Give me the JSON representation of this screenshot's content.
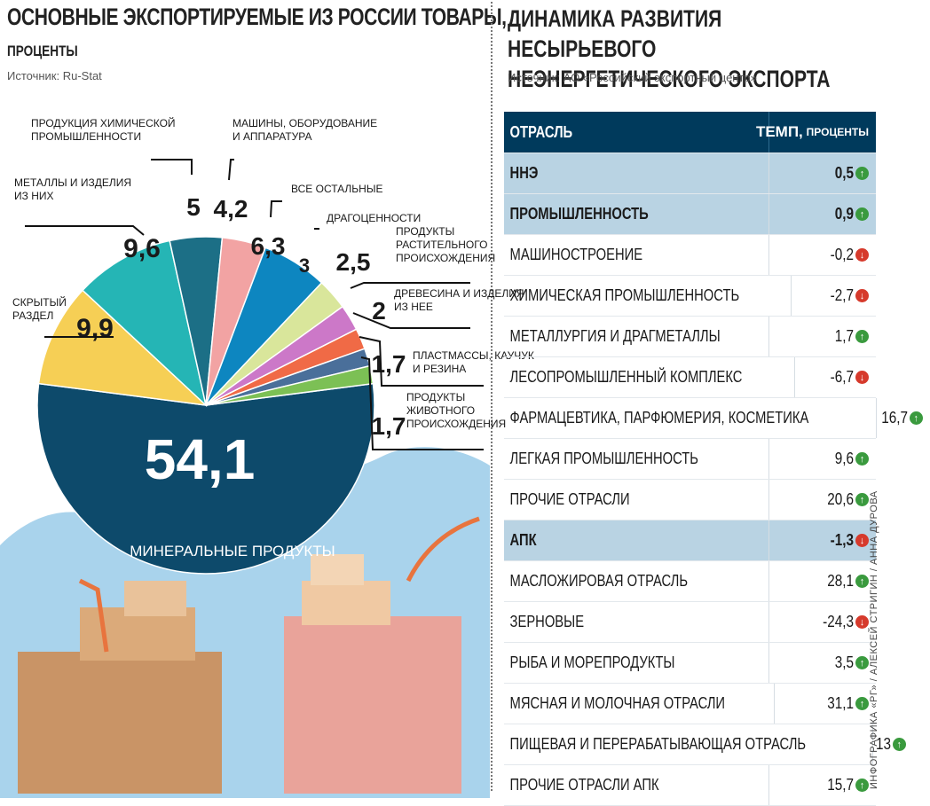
{
  "left": {
    "title": "ОСНОВНЫЕ ЭКСПОРТИРУЕМЫЕ ИЗ РОССИИ ТОВАРЫ,",
    "subtitle": "ПРОЦЕНТЫ",
    "source": "Источник: Ru-Stat"
  },
  "right": {
    "title_line1": "ДИНАМИКА РАЗВИТИЯ НЕСЫРЬЕВОГО",
    "title_line2": "НЕЭНЕРГЕТИЧЕСКОГО ЭКСПОРТА",
    "source": "Источник: АО «Российский экспортный центр»"
  },
  "credit": "ИНФОГРАФИКА «РГ» / АЛЕКСЕЙ СТРИГИН / АННА ДУРОВА",
  "chart_data": [
    {
      "type": "pie",
      "title": "ОСНОВНЫЕ ЭКСПОРТИРУЕМЫЕ ИЗ РОССИИ ТОВАРЫ,",
      "subtitle": "ПРОЦЕНТЫ",
      "slices": [
        {
          "label": "МИНЕРАЛЬНЫЕ ПРОДУКТЫ",
          "value": 54.1,
          "value_text": "54,1",
          "color": "#0d4a6b"
        },
        {
          "label": "СКРЫТЫЙ РАЗДЕЛ",
          "value": 9.9,
          "value_text": "9,9",
          "color": "#f6cf55"
        },
        {
          "label": "МЕТАЛЛЫ И ИЗДЕЛИЯ ИЗ НИХ",
          "value": 9.6,
          "value_text": "9,6",
          "color": "#25b5b5"
        },
        {
          "label": "ПРОДУКЦИЯ ХИМИЧЕСКОЙ ПРОМЫШЛЕННОСТИ",
          "value": 5,
          "value_text": "5",
          "color": "#1c6f86"
        },
        {
          "label": "МАШИНЫ, ОБОРУДОВАНИЕ И АППАРАТУРА",
          "value": 4.2,
          "value_text": "4,2",
          "color": "#f2a3a3"
        },
        {
          "label": "ВСЕ ОСТАЛЬНЫЕ",
          "value": 6.3,
          "value_text": "6,3",
          "color": "#0d86c0"
        },
        {
          "label": "ДРАГОЦЕННОСТИ",
          "value": 3,
          "value_text": "3",
          "color": "#d9e69b"
        },
        {
          "label": "ПРОДУКТЫ РАСТИТЕЛЬНОГО ПРОИСХОЖДЕНИЯ",
          "value": 2.5,
          "value_text": "2,5",
          "color": "#cc78c8"
        },
        {
          "label": "ДРЕВЕСИНА И ИЗДЕЛИЯ ИЗ НЕЕ",
          "value": 2,
          "value_text": "2",
          "color": "#f06a46"
        },
        {
          "label": "ПЛАСТМАССЫ, КАУЧУК И РЕЗИНА",
          "value": 1.7,
          "value_text": "1,7",
          "color": "#4a6f9a"
        },
        {
          "label": "ПРОДУКТЫ ЖИВОТНОГО ПРОИСХОЖДЕНИЯ",
          "value": 1.7,
          "value_text": "1,7",
          "color": "#7cc055"
        }
      ]
    },
    {
      "type": "table",
      "columns": [
        "ОТРАСЛЬ",
        "ТЕМП,",
        "ПРОЦЕНТЫ"
      ],
      "rows": [
        {
          "name": "ННЭ",
          "value": "0,5",
          "trend": "up",
          "group": true
        },
        {
          "name": "ПРОМЫШЛЕННОСТЬ",
          "value": "0,9",
          "trend": "up",
          "group": true
        },
        {
          "name": "МАШИНОСТРОЕНИЕ",
          "value": "-0,2",
          "trend": "down",
          "group": false
        },
        {
          "name": "ХИМИЧЕСКАЯ ПРОМЫШЛЕННОСТЬ",
          "value": "-2,7",
          "trend": "down",
          "group": false
        },
        {
          "name": "МЕТАЛЛУРГИЯ И ДРАГМЕТАЛЛЫ",
          "value": "1,7",
          "trend": "up",
          "group": false
        },
        {
          "name": "ЛЕСОПРОМЫШЛЕННЫЙ КОМПЛЕКС",
          "value": "-6,7",
          "trend": "down",
          "group": false
        },
        {
          "name": "ФАРМАЦЕВТИКА, ПАРФЮМЕРИЯ, КОСМЕТИКА",
          "value": "16,7",
          "trend": "up",
          "group": false
        },
        {
          "name": "ЛЕГКАЯ ПРОМЫШЛЕННОСТЬ",
          "value": "9,6",
          "trend": "up",
          "group": false
        },
        {
          "name": "ПРОЧИЕ ОТРАСЛИ",
          "value": "20,6",
          "trend": "up",
          "group": false
        },
        {
          "name": "АПК",
          "value": "-1,3",
          "trend": "down",
          "group": true
        },
        {
          "name": "МАСЛОЖИРОВАЯ ОТРАСЛЬ",
          "value": "28,1",
          "trend": "up",
          "group": false
        },
        {
          "name": "ЗЕРНОВЫЕ",
          "value": "-24,3",
          "trend": "down",
          "group": false
        },
        {
          "name": "РЫБА И МОРЕПРОДУКТЫ",
          "value": "3,5",
          "trend": "up",
          "group": false
        },
        {
          "name": "МЯСНАЯ И МОЛОЧНАЯ ОТРАСЛИ",
          "value": "31,1",
          "trend": "up",
          "group": false
        },
        {
          "name": "ПИЩЕВАЯ И ПЕРЕРАБАТЫВАЮЩАЯ ОТРАСЛЬ",
          "value": "13",
          "trend": "up",
          "group": false
        },
        {
          "name": "ПРОЧИЕ ОТРАСЛИ АПК",
          "value": "15,7",
          "trend": "up",
          "group": false
        }
      ]
    }
  ]
}
